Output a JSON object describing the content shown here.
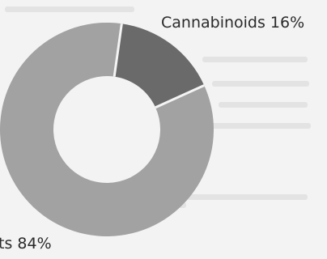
{
  "chart_data": {
    "type": "pie",
    "donut": true,
    "categories": [
      "Cannabinoids",
      "Other constituents"
    ],
    "values": [
      16,
      84
    ],
    "data_labels": [
      "Cannabinoids 16%",
      "ts 84%"
    ],
    "colors": [
      "#6a6a6a",
      "#a2a2a2"
    ],
    "separator_color": "#f4f4f4",
    "title": "",
    "legend": "none"
  }
}
